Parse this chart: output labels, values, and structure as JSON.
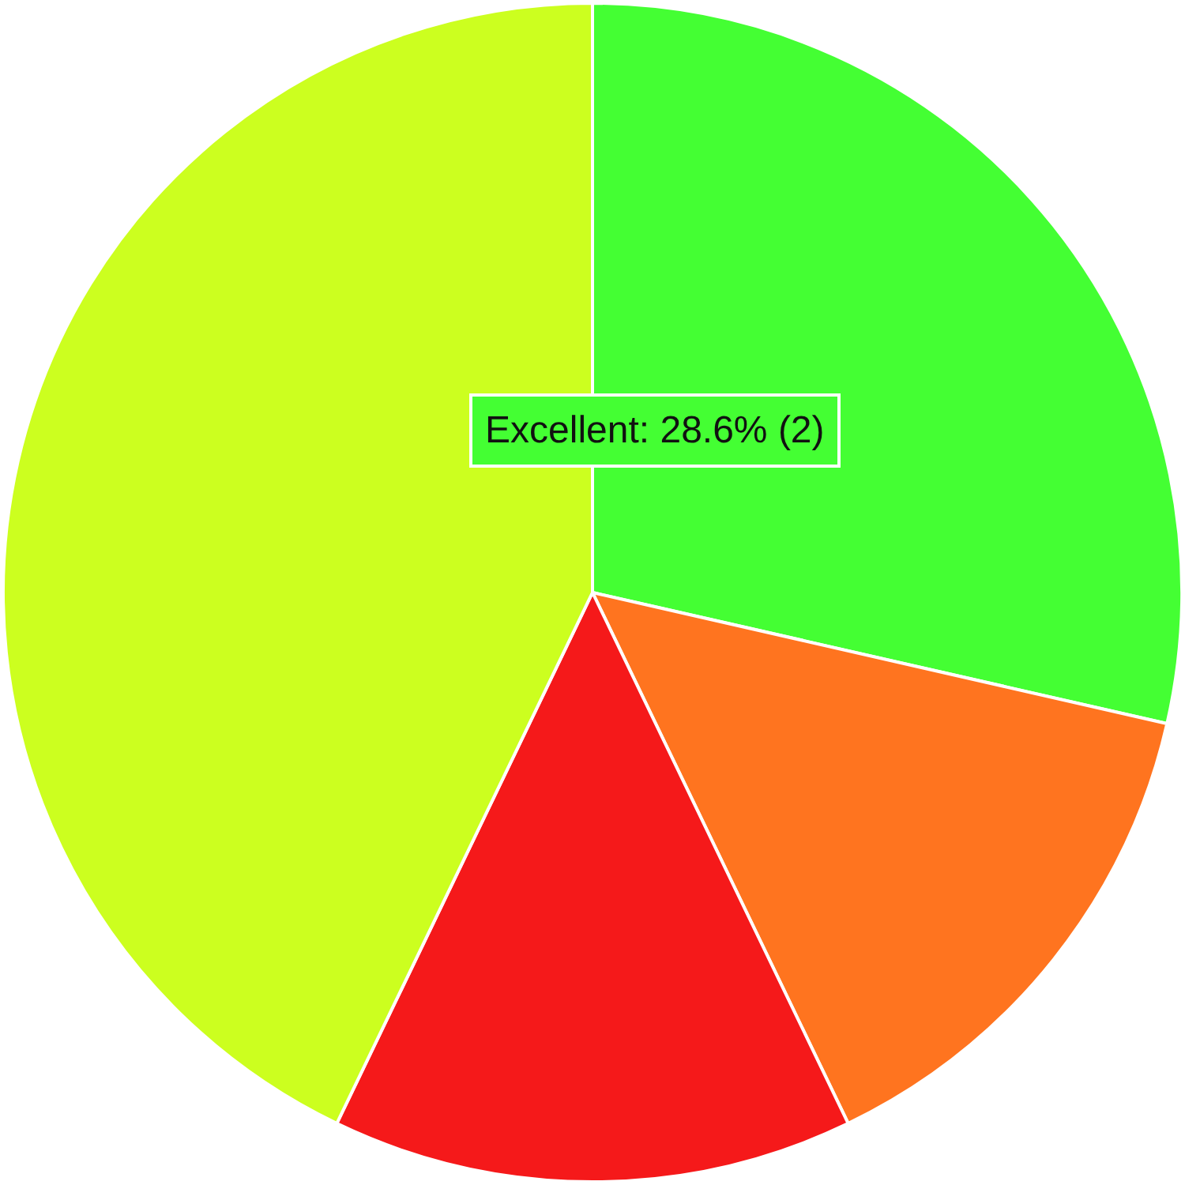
{
  "chart_data": {
    "type": "pie",
    "categories": [
      "Excellent",
      null,
      null,
      null
    ],
    "values": [
      28.6,
      14.3,
      14.3,
      42.9
    ],
    "colors": [
      "#44ff33",
      "#ff741f",
      "#f5191a",
      "#ccff1f"
    ],
    "value_labels": [
      "28.6% (2)",
      null,
      null,
      null
    ],
    "legend": false
  }
}
